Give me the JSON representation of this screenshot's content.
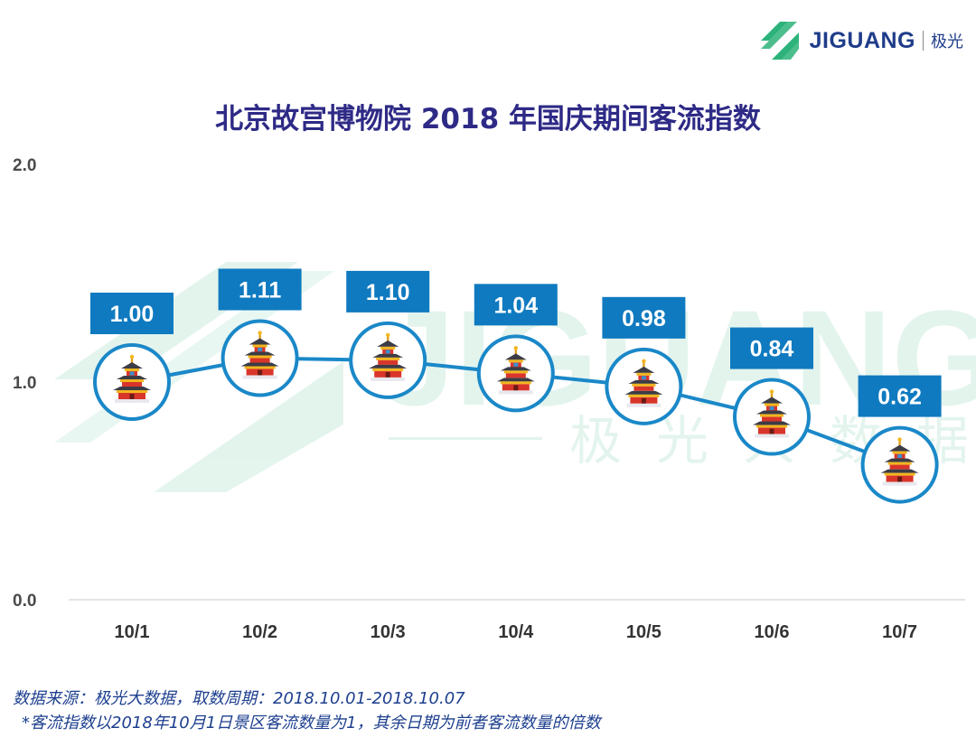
{
  "brand": {
    "logo_icon": "jiguang-logo-icon",
    "name_en": "JIGUANG",
    "name_cn": "极光",
    "watermark_en": "JIGUANG",
    "watermark_cn": "极光大数据",
    "logo_color": "#2db37a",
    "text_color": "#1f3c8a"
  },
  "chart_data": {
    "type": "line",
    "title": "北京故宫博物院 2018 年国庆期间客流指数",
    "categories": [
      "10/1",
      "10/2",
      "10/3",
      "10/4",
      "10/5",
      "10/6",
      "10/7"
    ],
    "values": [
      1.0,
      1.11,
      1.1,
      1.04,
      0.98,
      0.84,
      0.62
    ],
    "data_labels": [
      "1.00",
      "1.11",
      "1.10",
      "1.04",
      "0.98",
      "0.84",
      "0.62"
    ],
    "y_ticks": [
      0.0,
      1.0,
      2.0
    ],
    "y_tick_labels": [
      "0.0",
      "1.0",
      "2.0"
    ],
    "ylim": [
      0,
      2
    ],
    "grid": false,
    "marker_icon": "temple-icon",
    "line_color": "#1a88c8",
    "label_color": "#0f7ac0",
    "title_color": "#2e2a86"
  },
  "footer": {
    "source": "数据来源：极光大数据，取数周期：2018.10.01-2018.10.07",
    "note": "*客流指数以2018年10月1日景区客流数量为1，其余日期为前者客流数量的倍数"
  }
}
